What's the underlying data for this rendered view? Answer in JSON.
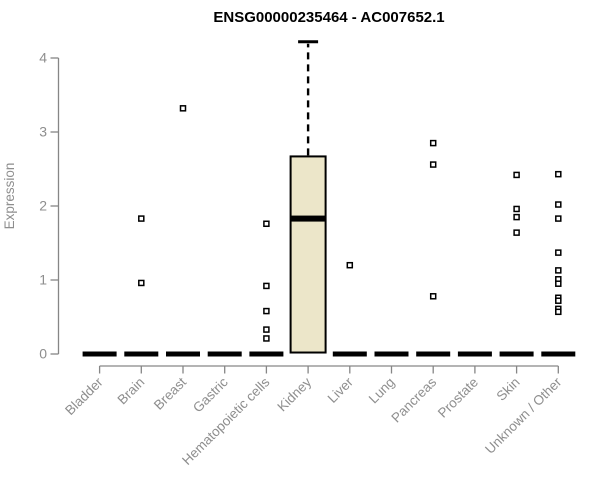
{
  "chart_data": {
    "type": "boxplot",
    "title": "ENSG00000235464 - AC007652.1",
    "xlabel": "",
    "ylabel": "Expression",
    "ylim": [
      0,
      4
    ],
    "yticks": [
      0,
      1,
      2,
      3,
      4
    ],
    "grid": false,
    "legend": "none",
    "categories": [
      "Bladder",
      "Brain",
      "Breast",
      "Gastric",
      "Hematopoietic cells",
      "Kidney",
      "Liver",
      "Lung",
      "Pancreas",
      "Prostate",
      "Skin",
      "Unknown / Other"
    ],
    "boxes": [
      {
        "category": "Bladder",
        "q1": 0,
        "median": 0,
        "q3": 0,
        "whisker_low": 0,
        "whisker_high": 0,
        "outliers": []
      },
      {
        "category": "Brain",
        "q1": 0,
        "median": 0,
        "q3": 0,
        "whisker_low": 0,
        "whisker_high": 0,
        "outliers": [
          1.83,
          0.96
        ]
      },
      {
        "category": "Breast",
        "q1": 0,
        "median": 0,
        "q3": 0,
        "whisker_low": 0,
        "whisker_high": 0,
        "outliers": [
          3.32
        ]
      },
      {
        "category": "Gastric",
        "q1": 0,
        "median": 0,
        "q3": 0,
        "whisker_low": 0,
        "whisker_high": 0,
        "outliers": []
      },
      {
        "category": "Hematopoietic cells",
        "q1": 0,
        "median": 0,
        "q3": 0,
        "whisker_low": 0,
        "whisker_high": 0,
        "outliers": [
          1.76,
          0.92,
          0.58,
          0.33,
          0.21
        ]
      },
      {
        "category": "Kidney",
        "q1": 0.02,
        "median": 1.83,
        "q3": 2.67,
        "whisker_low": 0.02,
        "whisker_high": 4.22,
        "outliers": []
      },
      {
        "category": "Liver",
        "q1": 0,
        "median": 0,
        "q3": 0,
        "whisker_low": 0,
        "whisker_high": 0,
        "outliers": [
          1.2
        ]
      },
      {
        "category": "Lung",
        "q1": 0,
        "median": 0,
        "q3": 0,
        "whisker_low": 0,
        "whisker_high": 0,
        "outliers": []
      },
      {
        "category": "Pancreas",
        "q1": 0,
        "median": 0,
        "q3": 0,
        "whisker_low": 0,
        "whisker_high": 0,
        "outliers": [
          2.85,
          2.56,
          0.78
        ]
      },
      {
        "category": "Prostate",
        "q1": 0,
        "median": 0,
        "q3": 0,
        "whisker_low": 0,
        "whisker_high": 0,
        "outliers": []
      },
      {
        "category": "Skin",
        "q1": 0,
        "median": 0,
        "q3": 0,
        "whisker_low": 0,
        "whisker_high": 0,
        "outliers": [
          2.42,
          1.96,
          1.85,
          1.64
        ]
      },
      {
        "category": "Unknown / Other",
        "q1": 0,
        "median": 0,
        "q3": 0,
        "whisker_low": 0,
        "whisker_high": 0,
        "outliers": [
          2.43,
          2.02,
          1.83,
          1.37,
          1.13,
          1.01,
          0.95,
          0.76,
          0.72,
          0.61,
          0.57
        ]
      }
    ],
    "colors": {
      "box_fill": "#ece6c9",
      "box_border": "#000000",
      "median": "#000000",
      "flat_bar": "#000000",
      "outlier_fill": "#ffffff",
      "outlier_border": "#000000",
      "axis_line": "#868686",
      "axis_text": "#8e8e8e",
      "title": "#000000",
      "background": "#ffffff"
    }
  }
}
